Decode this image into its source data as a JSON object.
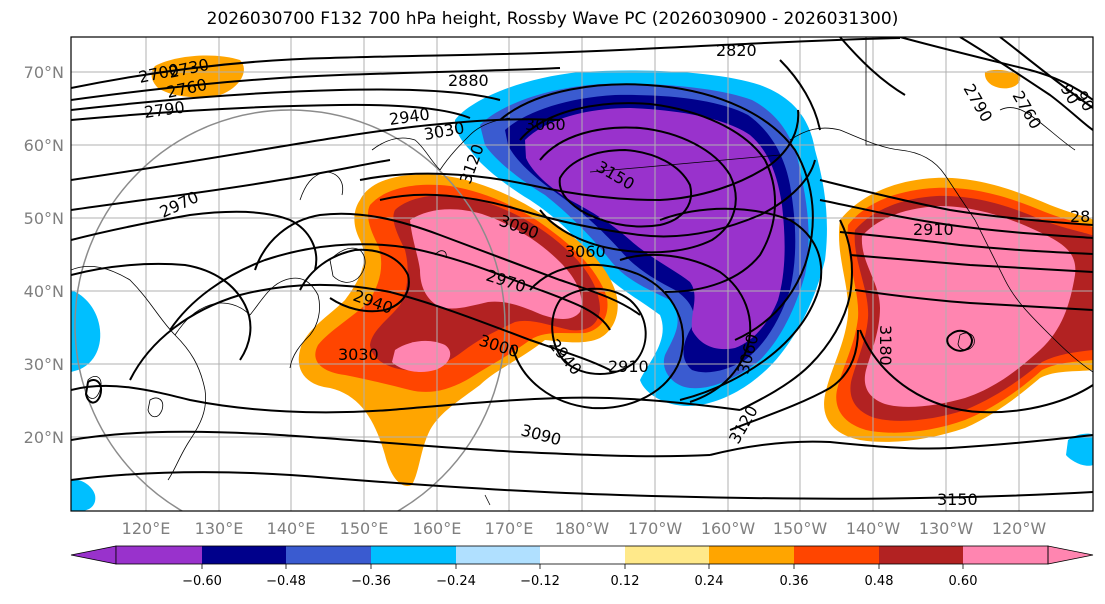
{
  "title": "2026030700 F132 700 hPa height, Rossby Wave PC (2026030900 - 2026031300)",
  "lat_labels": [
    "70°N",
    "60°N",
    "50°N",
    "40°N",
    "30°N",
    "20°N"
  ],
  "lon_labels": [
    "120°E",
    "130°E",
    "140°E",
    "150°E",
    "160°E",
    "170°E",
    "180°W",
    "170°W",
    "160°W",
    "150°W",
    "140°W",
    "130°W",
    "120°W"
  ],
  "colorbar": {
    "ticks": [
      "−0.60",
      "−0.48",
      "−0.36",
      "−0.24",
      "−0.12",
      "0.12",
      "0.24",
      "0.36",
      "0.48",
      "0.60"
    ],
    "colors": [
      "#9932cc",
      "#00008b",
      "#3a5bd0",
      "#00bfff",
      "#b0e0ff",
      "#ffffff",
      "#ffe98a",
      "#ffa500",
      "#ff4500",
      "#b22222",
      "#ff85b0"
    ]
  },
  "colors": {
    "pos_high": "#ff85b0",
    "pos_mid": "#b22222",
    "pos_low": "#ff4500",
    "pos_min": "#ffa500",
    "neg_high": "#9932cc",
    "neg_mid": "#00008b",
    "neg_low": "#3a5bd0",
    "neg_min": "#00bfff",
    "contour": "#000000",
    "grid": "#b0b0b0"
  },
  "contour_labels": [
    "2820",
    "2880",
    "2700",
    "2730",
    "2760",
    "2790",
    "2940",
    "3030",
    "3120",
    "3060",
    "3150",
    "2970",
    "3090",
    "3060",
    "2970",
    "2940",
    "3030",
    "3000",
    "2940",
    "2910",
    "3060",
    "3090",
    "3120",
    "3150",
    "2910",
    "3180",
    "2790",
    "2760",
    "28",
    "90",
    "90"
  ]
}
